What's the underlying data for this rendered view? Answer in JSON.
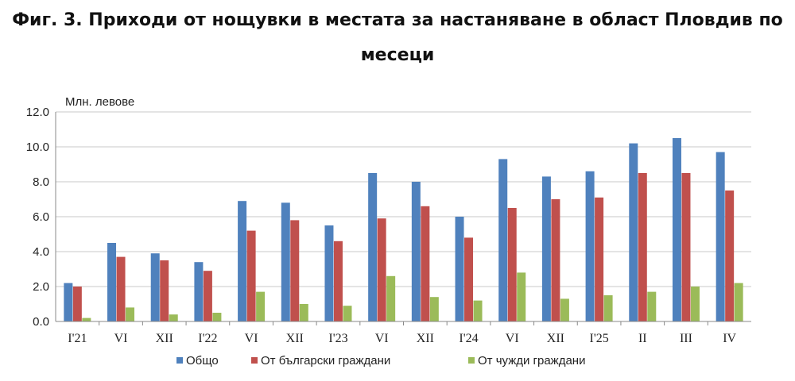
{
  "title_line1": "Фиг. 3. Приходи от нощувки в местата за настаняване в област Пловдив по",
  "title_line2": "месеци",
  "chart_data": {
    "type": "bar",
    "unit_label": "Млн. левове",
    "ylim": [
      0,
      12
    ],
    "yticks": [
      "0.0",
      "2.0",
      "4.0",
      "6.0",
      "8.0",
      "10.0",
      "12.0"
    ],
    "grid": true,
    "legend_position": "bottom",
    "categories": [
      "I'21",
      "VI",
      "XII",
      "I'22",
      "VI",
      "XII",
      "I'23",
      "VI",
      "XII",
      "I'24",
      "VI",
      "XII",
      "I'25",
      "II",
      "III",
      "IV"
    ],
    "series": [
      {
        "name": "Общо",
        "color": "#4F81BD",
        "values": [
          2.2,
          4.5,
          3.9,
          3.4,
          6.9,
          6.8,
          5.5,
          8.5,
          8.0,
          6.0,
          9.3,
          8.3,
          8.6,
          10.2,
          10.5,
          9.7
        ]
      },
      {
        "name": "От български граждани",
        "color": "#C0504D",
        "values": [
          2.0,
          3.7,
          3.5,
          2.9,
          5.2,
          5.8,
          4.6,
          5.9,
          6.6,
          4.8,
          6.5,
          7.0,
          7.1,
          8.5,
          8.5,
          7.5
        ]
      },
      {
        "name": "От чужди граждани",
        "color": "#9BBB59",
        "values": [
          0.2,
          0.8,
          0.4,
          0.5,
          1.7,
          1.0,
          0.9,
          2.6,
          1.4,
          1.2,
          2.8,
          1.3,
          1.5,
          1.7,
          2.0,
          2.2
        ]
      }
    ]
  }
}
